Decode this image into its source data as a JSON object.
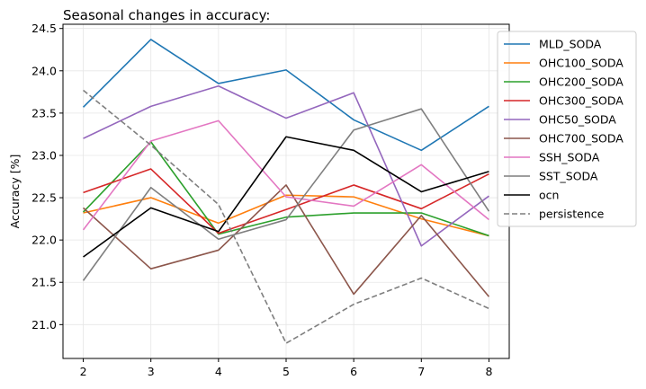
{
  "chart_data": {
    "type": "line",
    "title": "Seasonal changes in accuracy:",
    "xlabel": "",
    "ylabel": "Accuracy [%]",
    "x": [
      2,
      3,
      4,
      5,
      6,
      7,
      8
    ],
    "xlim": [
      1.7,
      8.3
    ],
    "ylim": [
      20.6,
      24.55
    ],
    "xticks": [
      "2",
      "3",
      "4",
      "5",
      "6",
      "7",
      "8"
    ],
    "yticks": [
      "21.0",
      "21.5",
      "22.0",
      "22.5",
      "23.0",
      "23.5",
      "24.0",
      "24.5"
    ],
    "grid": true,
    "legend_position": "upper right, outside plot",
    "series": [
      {
        "name": "MLD_SODA",
        "color": "#1f77b4",
        "dash": "solid",
        "values": [
          23.57,
          24.37,
          23.85,
          24.01,
          23.42,
          23.06,
          23.58
        ]
      },
      {
        "name": "OHC100_SODA",
        "color": "#ff7f0e",
        "dash": "solid",
        "values": [
          22.32,
          22.5,
          22.2,
          22.53,
          22.51,
          22.25,
          22.05
        ]
      },
      {
        "name": "OHC200_SODA",
        "color": "#2ca02c",
        "dash": "solid",
        "values": [
          22.33,
          23.16,
          22.07,
          22.27,
          22.32,
          22.32,
          22.05
        ]
      },
      {
        "name": "OHC300_SODA",
        "color": "#d62728",
        "dash": "solid",
        "values": [
          22.56,
          22.84,
          22.08,
          22.36,
          22.65,
          22.37,
          22.78
        ]
      },
      {
        "name": "OHC50_SODA",
        "color": "#9467bd",
        "dash": "solid",
        "values": [
          23.2,
          23.58,
          23.82,
          23.44,
          23.74,
          21.93,
          22.52
        ]
      },
      {
        "name": "OHC700_SODA",
        "color": "#8c564b",
        "dash": "solid",
        "values": [
          22.38,
          21.66,
          21.88,
          22.65,
          21.36,
          22.29,
          21.33
        ]
      },
      {
        "name": "SSH_SODA",
        "color": "#e377c2",
        "dash": "solid",
        "values": [
          22.12,
          23.17,
          23.41,
          22.51,
          22.4,
          22.89,
          22.24
        ]
      },
      {
        "name": "SST_SODA",
        "color": "#7f7f7f",
        "dash": "solid",
        "values": [
          21.52,
          22.62,
          22.01,
          22.24,
          23.3,
          23.55,
          22.34
        ]
      },
      {
        "name": "ocn",
        "color": "#000000",
        "dash": "solid",
        "values": [
          21.8,
          22.38,
          22.1,
          23.22,
          23.06,
          22.57,
          22.81
        ]
      },
      {
        "name": "persistence",
        "color": "#7f7f7f",
        "dash": "dashed",
        "values": [
          23.77,
          23.12,
          22.42,
          20.78,
          21.24,
          21.55,
          21.19
        ]
      }
    ]
  }
}
